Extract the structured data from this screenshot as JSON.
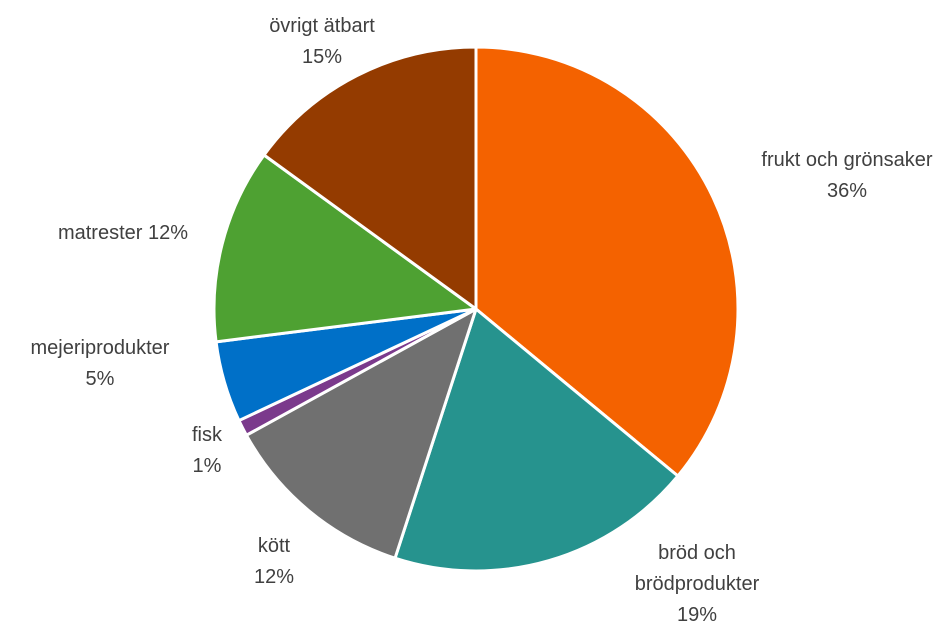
{
  "chart_data": {
    "type": "pie",
    "categories": [
      "frukt och grönsaker",
      "bröd och brödprodukter",
      "kött",
      "fisk",
      "mejeriprodukter",
      "matrester",
      "övrigt ätbart"
    ],
    "values": [
      36,
      19,
      12,
      1,
      5,
      12,
      15
    ],
    "value_labels": [
      "36%",
      "19%",
      "12%",
      "1%",
      "5%",
      "12%",
      "15%"
    ],
    "colors": [
      "#f46200",
      "#26938e",
      "#707070",
      "#7b3a8c",
      "#0070c8",
      "#4ea132",
      "#943b00"
    ]
  }
}
